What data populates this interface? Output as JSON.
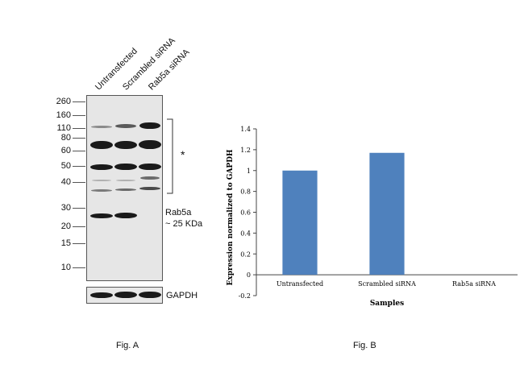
{
  "figA": {
    "lanes": [
      "Untransfected",
      "Scrambled siRNA",
      "Rab5a siRNA"
    ],
    "markers": [
      "260",
      "160",
      "110",
      "80",
      "60",
      "50",
      "40",
      "30",
      "20",
      "15",
      "10"
    ],
    "star": "*",
    "rab5a_label_line1": "Rab5a",
    "rab5a_label_line2": "~ 25 KDa",
    "gapdh_label": "GAPDH",
    "caption": "Fig. A"
  },
  "figB": {
    "caption": "Fig. B"
  },
  "chart_data": {
    "type": "bar",
    "categories": [
      "Untransfected",
      "Scrambled siRNA",
      "Rab5a siRNA"
    ],
    "values": [
      1.0,
      1.17,
      0.0
    ],
    "title": "",
    "xlabel": "Samples",
    "ylabel": "Expression normalized to GAPDH",
    "ylim": [
      -0.2,
      1.4
    ],
    "yticks": [
      "1.4",
      "1.2",
      "1",
      "0.8",
      "0.6",
      "0.4",
      "0.2",
      "0",
      "-0.2"
    ],
    "bar_color": "#4f81bd",
    "grid": false
  }
}
